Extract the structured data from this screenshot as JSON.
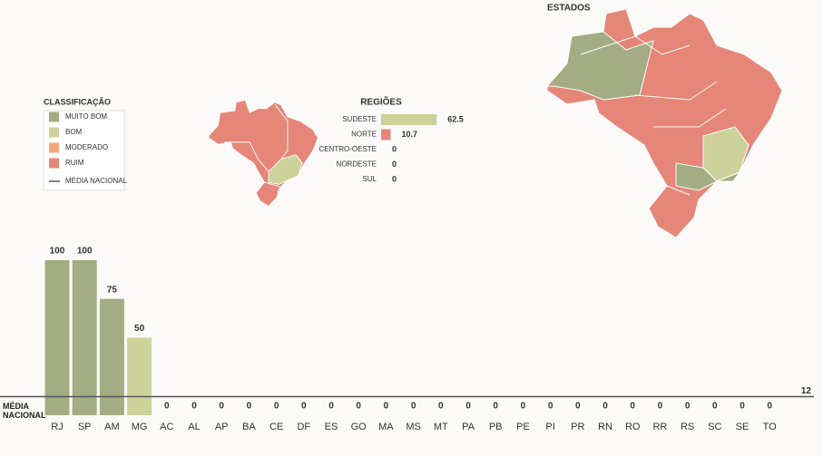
{
  "map_title": "ESTADOS",
  "legend": {
    "title": "CLASSIFICAÇÃO",
    "items": [
      {
        "name": "MUITO BOM",
        "color": "#a3ac82"
      },
      {
        "name": "BOM",
        "color": "#cdd19a"
      },
      {
        "name": "MODERADO",
        "color": "#f5a97a"
      },
      {
        "name": "RUIM",
        "color": "#e58678"
      }
    ],
    "line_item": "MÉDIA NACIONAL"
  },
  "chart_data": [
    {
      "type": "hbar",
      "title": "REGIÕES",
      "categories": [
        "SUDESTE",
        "NORTE",
        "CENTRO-OESTE",
        "NORDESTE",
        "SUL"
      ],
      "values": [
        62.5,
        10.7,
        0,
        0,
        0
      ],
      "colors": [
        "#cdd19a",
        "#e58678",
        "#e58678",
        "#e58678",
        "#e58678"
      ]
    },
    {
      "type": "bar",
      "categories": [
        "RJ",
        "SP",
        "AM",
        "MG",
        "AC",
        "AL",
        "AP",
        "BA",
        "CE",
        "DF",
        "ES",
        "GO",
        "MA",
        "MS",
        "MT",
        "PA",
        "PB",
        "PE",
        "PI",
        "PR",
        "RN",
        "RO",
        "RR",
        "RS",
        "SC",
        "SE",
        "TO"
      ],
      "values": [
        100,
        100,
        75,
        50,
        0,
        0,
        0,
        0,
        0,
        0,
        0,
        0,
        0,
        0,
        0,
        0,
        0,
        0,
        0,
        0,
        0,
        0,
        0,
        0,
        0,
        0,
        0
      ],
      "colors": [
        "#a3ac82",
        "#a3ac82",
        "#a3ac82",
        "#cdd19a",
        "#e58678",
        "#e58678",
        "#e58678",
        "#e58678",
        "#e58678",
        "#e58678",
        "#e58678",
        "#e58678",
        "#e58678",
        "#e58678",
        "#e58678",
        "#e58678",
        "#e58678",
        "#e58678",
        "#e58678",
        "#e58678",
        "#e58678",
        "#e58678",
        "#e58678",
        "#e58678",
        "#e58678",
        "#e58678",
        "#e58678"
      ],
      "reference_line": {
        "label": "MÉDIA NACIONAL",
        "value": 12,
        "color": "#555555"
      }
    }
  ]
}
